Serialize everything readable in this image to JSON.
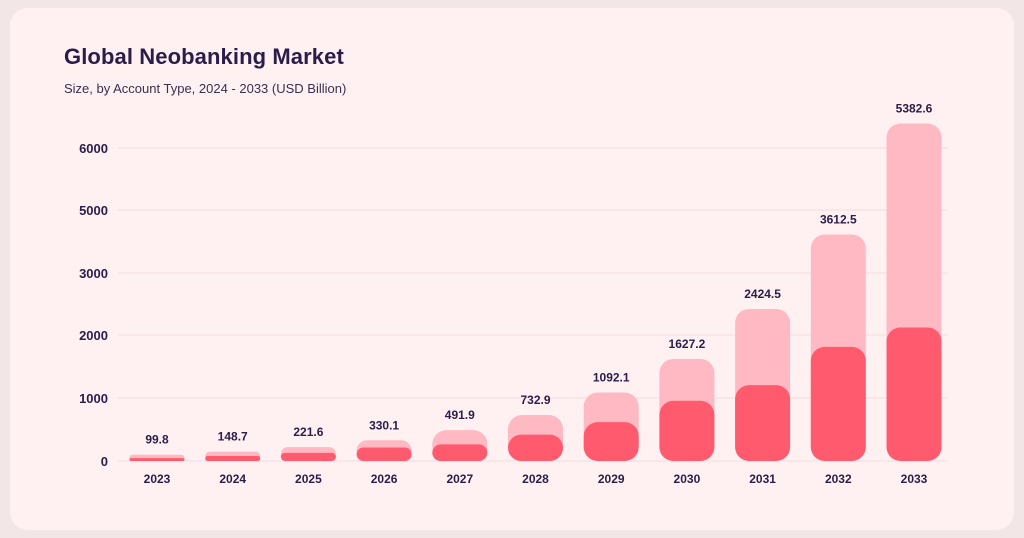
{
  "chart_data": {
    "type": "bar",
    "stacked": true,
    "title": "Global Neobanking Market",
    "subtitle": "Size, by Account Type, 2024 - 2033 (USD Billion)",
    "categories": [
      "2023",
      "2024",
      "2025",
      "2026",
      "2027",
      "2028",
      "2029",
      "2030",
      "2031",
      "2032",
      "2033"
    ],
    "series": [
      {
        "color": "#ff5a6e",
        "values": [
          46,
          80,
          130,
          215,
          265,
          420,
          620,
          960,
          1210,
          1820,
          2130
        ]
      },
      {
        "color": "#ffb9c3",
        "values": [
          53.8,
          68.7,
          91.6,
          115.1,
          226.9,
          312.9,
          472.1,
          667.2,
          1214.5,
          1792.5,
          3252.6
        ]
      }
    ],
    "totals": [
      "99.8",
      "148.7",
      "221.6",
      "330.1",
      "491.9",
      "732.9",
      "1092.1",
      "1627.2",
      "2424.5",
      "3612.5",
      "5382.6"
    ],
    "y_ticks": [
      "0",
      "1000",
      "2000",
      "3000",
      "5000",
      "6000"
    ],
    "ylim": [
      0,
      6000
    ],
    "grid": true,
    "legend": "none"
  }
}
